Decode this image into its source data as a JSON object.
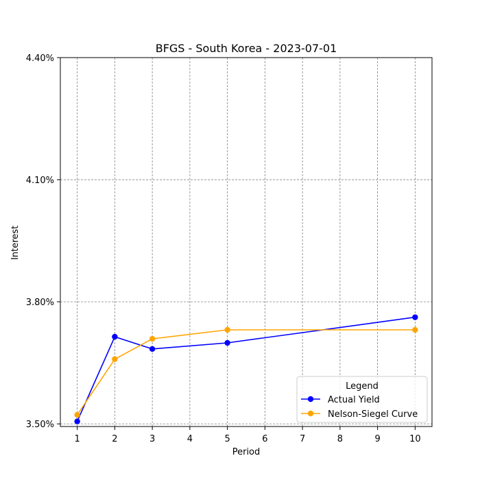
{
  "chart_data": {
    "type": "line",
    "title": "BFGS - South Korea - 2023-07-01",
    "xlabel": "Period",
    "ylabel": "Interest",
    "x_ticks": [
      1,
      2,
      3,
      4,
      5,
      6,
      7,
      8,
      9,
      10
    ],
    "y_ticks": [
      3.5,
      3.8,
      4.1,
      4.4
    ],
    "y_tick_labels": [
      "3.50%",
      "3.80%",
      "4.10%",
      "4.40%"
    ],
    "xlim": [
      0.55,
      10.45
    ],
    "ylim": [
      3.4935,
      4.4
    ],
    "grid": true,
    "legend": {
      "title": "Legend",
      "placement": "lower right"
    },
    "series": [
      {
        "name": "Actual Yield",
        "color": "#0000ff",
        "x": [
          1,
          2,
          3,
          5,
          10
        ],
        "y": [
          3.506,
          3.714,
          3.684,
          3.699,
          3.762
        ]
      },
      {
        "name": "Nelson-Siegel Curve",
        "color": "#ffa500",
        "x": [
          1,
          2,
          3,
          5,
          10
        ],
        "y": [
          3.522,
          3.659,
          3.709,
          3.731,
          3.731
        ]
      }
    ]
  }
}
